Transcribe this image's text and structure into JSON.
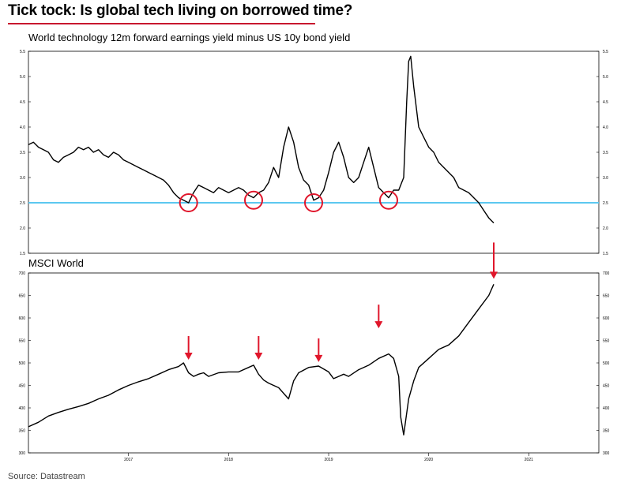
{
  "headline": "Tick tock: Is global tech living on borrowed time?",
  "source": "Source: Datastream",
  "colors": {
    "headline_rule": "#c8102e",
    "threshold_line": "#5bc8f0",
    "markers": "#e0162b",
    "series": "#000000"
  },
  "chart_data": [
    {
      "type": "line",
      "title": "World technology 12m forward earnings yield minus US 10y bond yield",
      "xlabel": "",
      "ylabel": "",
      "x_ticks": [
        "2017",
        "2018",
        "2019",
        "2020",
        "2021"
      ],
      "y_ticks": [
        "5.5",
        "5.0",
        "4.5",
        "4.0",
        "3.5",
        "3.0",
        "2.5",
        "2.0",
        "1.5"
      ],
      "ylim": [
        1.5,
        5.5
      ],
      "xlim": [
        2016.0,
        2021.7
      ],
      "grid": false,
      "reference_line": 2.5,
      "circled_points": [
        [
          2017.6,
          2.5
        ],
        [
          2018.25,
          2.55
        ],
        [
          2018.85,
          2.5
        ],
        [
          2019.6,
          2.55
        ]
      ],
      "series": [
        {
          "x": [
            2016.0,
            2016.05,
            2016.1,
            2016.15,
            2016.2,
            2016.25,
            2016.3,
            2016.35,
            2016.4,
            2016.45,
            2016.5,
            2016.55,
            2016.6,
            2016.65,
            2016.7,
            2016.75,
            2016.8,
            2016.85,
            2016.9,
            2016.95,
            2017.0,
            2017.05,
            2017.1,
            2017.15,
            2017.2,
            2017.25,
            2017.3,
            2017.35,
            2017.4,
            2017.45,
            2017.5,
            2017.55,
            2017.6,
            2017.65,
            2017.7,
            2017.75,
            2017.8,
            2017.85,
            2017.9,
            2017.95,
            2018.0,
            2018.05,
            2018.1,
            2018.15,
            2018.2,
            2018.25,
            2018.3,
            2018.35,
            2018.4,
            2018.45,
            2018.5,
            2018.55,
            2018.6,
            2018.65,
            2018.7,
            2018.75,
            2018.8,
            2018.85,
            2018.9,
            2018.95,
            2019.0,
            2019.05,
            2019.1,
            2019.15,
            2019.2,
            2019.25,
            2019.3,
            2019.35,
            2019.4,
            2019.45,
            2019.5,
            2019.55,
            2019.6,
            2019.65,
            2019.7,
            2019.75,
            2019.78,
            2019.8,
            2019.82,
            2019.85,
            2019.9,
            2019.95,
            2020.0,
            2020.05,
            2020.1,
            2020.15,
            2020.2,
            2020.25,
            2020.3,
            2020.35,
            2020.4,
            2020.45,
            2020.5,
            2020.55,
            2020.6,
            2020.65
          ],
          "values": [
            3.65,
            3.7,
            3.6,
            3.55,
            3.5,
            3.35,
            3.3,
            3.4,
            3.45,
            3.5,
            3.6,
            3.55,
            3.6,
            3.5,
            3.55,
            3.45,
            3.4,
            3.5,
            3.45,
            3.35,
            3.3,
            3.25,
            3.2,
            3.15,
            3.1,
            3.05,
            3.0,
            2.95,
            2.85,
            2.7,
            2.6,
            2.55,
            2.5,
            2.7,
            2.85,
            2.8,
            2.75,
            2.7,
            2.8,
            2.75,
            2.7,
            2.75,
            2.8,
            2.75,
            2.65,
            2.6,
            2.7,
            2.75,
            2.9,
            3.2,
            3.0,
            3.6,
            4.0,
            3.7,
            3.2,
            2.95,
            2.85,
            2.55,
            2.6,
            2.75,
            3.1,
            3.5,
            3.7,
            3.4,
            3.0,
            2.9,
            3.0,
            3.3,
            3.6,
            3.2,
            2.8,
            2.7,
            2.6,
            2.75,
            2.75,
            3.0,
            4.5,
            5.3,
            5.4,
            4.8,
            4.0,
            3.8,
            3.6,
            3.5,
            3.3,
            3.2,
            3.1,
            3.0,
            2.8,
            2.75,
            2.7,
            2.6,
            2.5,
            2.35,
            2.2,
            2.1
          ]
        }
      ]
    },
    {
      "type": "line",
      "title": "MSCI World",
      "xlabel": "",
      "ylabel": "",
      "x_ticks": [
        "2017",
        "2018",
        "2019",
        "2020",
        "2021"
      ],
      "y_ticks": [
        "700",
        "650",
        "600",
        "550",
        "500",
        "450",
        "400",
        "350",
        "300"
      ],
      "ylim": [
        300,
        700
      ],
      "xlim": [
        2016.0,
        2021.7
      ],
      "grid": false,
      "arrow_points": [
        [
          2017.6,
          500
        ],
        [
          2018.3,
          500
        ],
        [
          2018.9,
          495
        ],
        [
          2019.5,
          570
        ],
        [
          2020.65,
          680
        ]
      ],
      "series": [
        {
          "x": [
            2016.0,
            2016.1,
            2016.2,
            2016.3,
            2016.4,
            2016.5,
            2016.6,
            2016.7,
            2016.8,
            2016.9,
            2017.0,
            2017.1,
            2017.2,
            2017.3,
            2017.4,
            2017.5,
            2017.55,
            2017.6,
            2017.65,
            2017.7,
            2017.75,
            2017.8,
            2017.9,
            2018.0,
            2018.1,
            2018.2,
            2018.25,
            2018.3,
            2018.35,
            2018.4,
            2018.5,
            2018.6,
            2018.65,
            2018.7,
            2018.8,
            2018.9,
            2019.0,
            2019.05,
            2019.1,
            2019.15,
            2019.2,
            2019.3,
            2019.4,
            2019.5,
            2019.6,
            2019.65,
            2019.7,
            2019.72,
            2019.75,
            2019.8,
            2019.85,
            2019.9,
            2020.0,
            2020.1,
            2020.2,
            2020.3,
            2020.4,
            2020.5,
            2020.6,
            2020.65
          ],
          "values": [
            358,
            368,
            382,
            390,
            397,
            403,
            410,
            420,
            428,
            440,
            450,
            458,
            465,
            475,
            485,
            492,
            500,
            478,
            470,
            475,
            478,
            470,
            478,
            480,
            480,
            490,
            495,
            475,
            462,
            455,
            445,
            420,
            460,
            478,
            490,
            493,
            480,
            465,
            470,
            475,
            470,
            485,
            495,
            510,
            520,
            510,
            470,
            380,
            340,
            420,
            460,
            490,
            510,
            530,
            540,
            560,
            590,
            620,
            650,
            675
          ]
        }
      ]
    }
  ]
}
